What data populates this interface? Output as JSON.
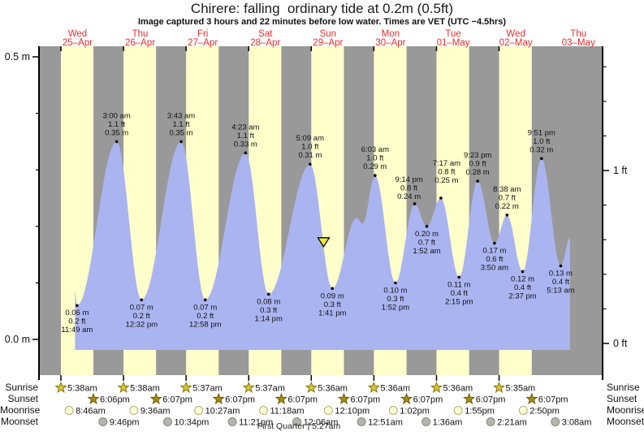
{
  "title": "Chirere: falling  ordinary tide at 0.2m (0.5ft)",
  "subtitle": "Image captured 3 hours and 22 minutes before low water. Times are VET (UTC −4.5hrs)",
  "footer": "First Quarter | 5:27am",
  "row_labels": {
    "sunrise": "Sunrise",
    "sunset": "Sunset",
    "moonrise": "Moonrise",
    "moonset": "Moonset"
  },
  "colors": {
    "day_band": "#ffffcc",
    "night_band": "#999999",
    "tide_fill": "#aab4f0",
    "date_label": "#e62e2e",
    "triangle": "#f3e73c",
    "axis": "#000000",
    "text": "#111111",
    "sunrise_star_fill": "#d9c832",
    "sunrise_star_stroke": "#867412",
    "sunset_star_fill": "#a38c14",
    "sunset_star_stroke": "#6d5c08",
    "moonrise_fill": "#ffffd8",
    "moonrise_stroke": "#b0ad70",
    "moonset_fill": "#b5b5ad",
    "moonset_stroke": "#8a8a82"
  },
  "y_axis": {
    "left_unit": "m",
    "left_labels": [
      {
        "m": 0.5,
        "label": "0.5 m"
      },
      {
        "m": 0.0,
        "label": "0.0 m"
      }
    ],
    "right_unit": "ft",
    "right_labels": [
      {
        "ft": 1,
        "label": "1 ft"
      },
      {
        "ft": 0,
        "label": "0 ft"
      }
    ]
  },
  "days": [
    {
      "name": "Wed",
      "date": "25–Apr"
    },
    {
      "name": "Thu",
      "date": "26–Apr"
    },
    {
      "name": "Fri",
      "date": "27–Apr"
    },
    {
      "name": "Sat",
      "date": "28–Apr"
    },
    {
      "name": "Sun",
      "date": "29–Apr"
    },
    {
      "name": "Mon",
      "date": "30–Apr"
    },
    {
      "name": "Tue",
      "date": "01–May"
    },
    {
      "name": "Wed",
      "date": "02–May"
    },
    {
      "name": "Thu",
      "date": "03–May"
    }
  ],
  "chart_data": {
    "type": "area",
    "ylim_m": [
      0.0,
      0.5
    ],
    "time_axis_days": 9,
    "curve_start": {
      "t": 11.05,
      "value_m": 0.085
    },
    "curve_end": {
      "t": 200.8,
      "value_m": 0.18
    },
    "current_time_marker": {
      "t": 106.32
    },
    "extremes": [
      {
        "t": 11.817,
        "type": "low",
        "value_m": 0.06,
        "m_label": "0.06 m",
        "ft_label": "0.2 ft",
        "time": "11:49 am"
      },
      {
        "t": 27.0,
        "type": "high",
        "value_m": 0.35,
        "m_label": "0.35 m",
        "ft_label": "1.1 ft",
        "time": "3:00 am"
      },
      {
        "t": 36.533,
        "type": "low",
        "value_m": 0.07,
        "m_label": "0.07 m",
        "ft_label": "0.2 ft",
        "time": "12:32 pm"
      },
      {
        "t": 51.717,
        "type": "high",
        "value_m": 0.35,
        "m_label": "0.35 m",
        "ft_label": "1.1 ft",
        "time": "3:43 am"
      },
      {
        "t": 60.967,
        "type": "low",
        "value_m": 0.07,
        "m_label": "0.07 m",
        "ft_label": "0.2 ft",
        "time": "12:58 pm"
      },
      {
        "t": 76.383,
        "type": "high",
        "value_m": 0.33,
        "m_label": "0.33 m",
        "ft_label": "1.1 ft",
        "time": "4:23 am"
      },
      {
        "t": 85.233,
        "type": "low",
        "value_m": 0.08,
        "m_label": "0.08 m",
        "ft_label": "0.3 ft",
        "time": "1:14 pm"
      },
      {
        "t": 101.15,
        "type": "high",
        "value_m": 0.31,
        "m_label": "0.31 m",
        "ft_label": "1.0 ft",
        "time": "5:09 am"
      },
      {
        "t": 109.683,
        "type": "low",
        "value_m": 0.09,
        "m_label": "0.09 m",
        "ft_label": "0.3 ft",
        "time": "1:41 pm"
      },
      {
        "t": 118.9,
        "type": "shape",
        "value_m": 0.215
      },
      {
        "t": 121.3,
        "type": "shape",
        "value_m": 0.205
      },
      {
        "t": 126.05,
        "type": "high",
        "value_m": 0.29,
        "m_label": "0.29 m",
        "ft_label": "1.0 ft",
        "time": "6:03 am"
      },
      {
        "t": 133.867,
        "type": "low",
        "value_m": 0.1,
        "m_label": "0.10 m",
        "ft_label": "0.3 ft",
        "time": "1:52 pm"
      },
      {
        "t": 141.233,
        "type": "high",
        "value_m": 0.24,
        "m_label": "0.24 m",
        "ft_label": "0.8 ft",
        "time": "9:14 pm"
      },
      {
        "t": 145.867,
        "type": "low",
        "value_m": 0.2,
        "m_label": "0.20 m",
        "ft_label": "0.7 ft",
        "time": "1:52 am"
      },
      {
        "t": 151.283,
        "type": "high",
        "value_m": 0.25,
        "m_label": "0.25 m",
        "ft_label": "0.8 ft",
        "time": "7:17 am"
      },
      {
        "t": 158.25,
        "type": "low",
        "value_m": 0.11,
        "m_label": "0.11 m",
        "ft_label": "0.4 ft",
        "time": "2:15 pm"
      },
      {
        "t": 165.383,
        "type": "high",
        "value_m": 0.28,
        "m_label": "0.28 m",
        "ft_label": "0.9 ft",
        "time": "9:23 pm"
      },
      {
        "t": 171.833,
        "type": "low",
        "value_m": 0.17,
        "m_label": "0.17 m",
        "ft_label": "0.6 ft",
        "time": "3:50 am"
      },
      {
        "t": 176.633,
        "type": "high",
        "value_m": 0.22,
        "m_label": "0.22 m",
        "ft_label": "0.7 ft",
        "time": "8:38 am"
      },
      {
        "t": 182.617,
        "type": "low",
        "value_m": 0.12,
        "m_label": "0.12 m",
        "ft_label": "0.4 ft",
        "time": "2:37 pm"
      },
      {
        "t": 189.85,
        "type": "high",
        "value_m": 0.32,
        "m_label": "0.32 m",
        "ft_label": "1.0 ft",
        "time": "9:51 pm"
      },
      {
        "t": 197.217,
        "type": "low",
        "value_m": 0.13,
        "m_label": "0.13 m",
        "ft_label": "0.4 ft",
        "time": "5:13 am"
      }
    ]
  },
  "astro": {
    "sunrise": [
      {
        "day": 0,
        "time": "5:38am"
      },
      {
        "day": 1,
        "time": "5:38am"
      },
      {
        "day": 2,
        "time": "5:37am"
      },
      {
        "day": 3,
        "time": "5:37am"
      },
      {
        "day": 4,
        "time": "5:36am"
      },
      {
        "day": 5,
        "time": "5:36am"
      },
      {
        "day": 6,
        "time": "5:36am"
      },
      {
        "day": 7,
        "time": "5:35am"
      }
    ],
    "sunset": [
      {
        "day": 0,
        "time": "6:06pm"
      },
      {
        "day": 1,
        "time": "6:07pm"
      },
      {
        "day": 2,
        "time": "6:07pm"
      },
      {
        "day": 3,
        "time": "6:07pm"
      },
      {
        "day": 4,
        "time": "6:07pm"
      },
      {
        "day": 5,
        "time": "6:07pm"
      },
      {
        "day": 6,
        "time": "6:07pm"
      },
      {
        "day": 7,
        "time": "6:07pm"
      }
    ],
    "moonrise": [
      {
        "day": 0,
        "time": "8:46am"
      },
      {
        "day": 1,
        "time": "9:36am"
      },
      {
        "day": 2,
        "time": "10:27am"
      },
      {
        "day": 3,
        "time": "11:18am"
      },
      {
        "day": 4,
        "time": "12:10pm"
      },
      {
        "day": 5,
        "time": "1:02pm"
      },
      {
        "day": 6,
        "time": "1:55pm"
      },
      {
        "day": 7,
        "time": "2:50pm"
      }
    ],
    "moonset": [
      {
        "day": 0,
        "time": "9:46pm"
      },
      {
        "day": 1,
        "time": "10:34pm"
      },
      {
        "day": 2,
        "time": "11:21pm"
      },
      {
        "day": 4,
        "time": "12:06am"
      },
      {
        "day": 5,
        "time": "12:51am"
      },
      {
        "day": 6,
        "time": "1:36am"
      },
      {
        "day": 7,
        "time": "2:21am"
      },
      {
        "day": 8,
        "time": "3:08am"
      }
    ]
  }
}
